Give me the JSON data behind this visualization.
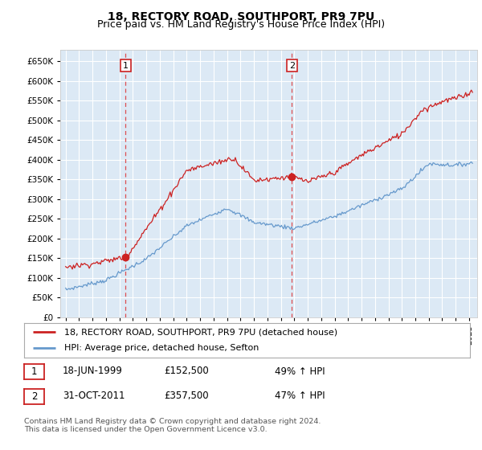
{
  "title": "18, RECTORY ROAD, SOUTHPORT, PR9 7PU",
  "subtitle": "Price paid vs. HM Land Registry's House Price Index (HPI)",
  "ylim": [
    0,
    680000
  ],
  "yticks": [
    0,
    50000,
    100000,
    150000,
    200000,
    250000,
    300000,
    350000,
    400000,
    450000,
    500000,
    550000,
    600000,
    650000
  ],
  "bg_color": "#dce9f5",
  "grid_color": "#ffffff",
  "sale1_date": 1999.46,
  "sale1_price": 152500,
  "sale2_date": 2011.83,
  "sale2_price": 357500,
  "red_line_color": "#cc2222",
  "blue_line_color": "#6699cc",
  "vline_color": "#dd3333",
  "legend_label1": "18, RECTORY ROAD, SOUTHPORT, PR9 7PU (detached house)",
  "legend_label2": "HPI: Average price, detached house, Sefton",
  "table_row1": [
    "1",
    "18-JUN-1999",
    "£152,500",
    "49% ↑ HPI"
  ],
  "table_row2": [
    "2",
    "31-OCT-2011",
    "£357,500",
    "47% ↑ HPI"
  ],
  "footnote": "Contains HM Land Registry data © Crown copyright and database right 2024.\nThis data is licensed under the Open Government Licence v3.0.",
  "title_fontsize": 10,
  "subtitle_fontsize": 9,
  "xstart": 1995,
  "xend": 2025
}
